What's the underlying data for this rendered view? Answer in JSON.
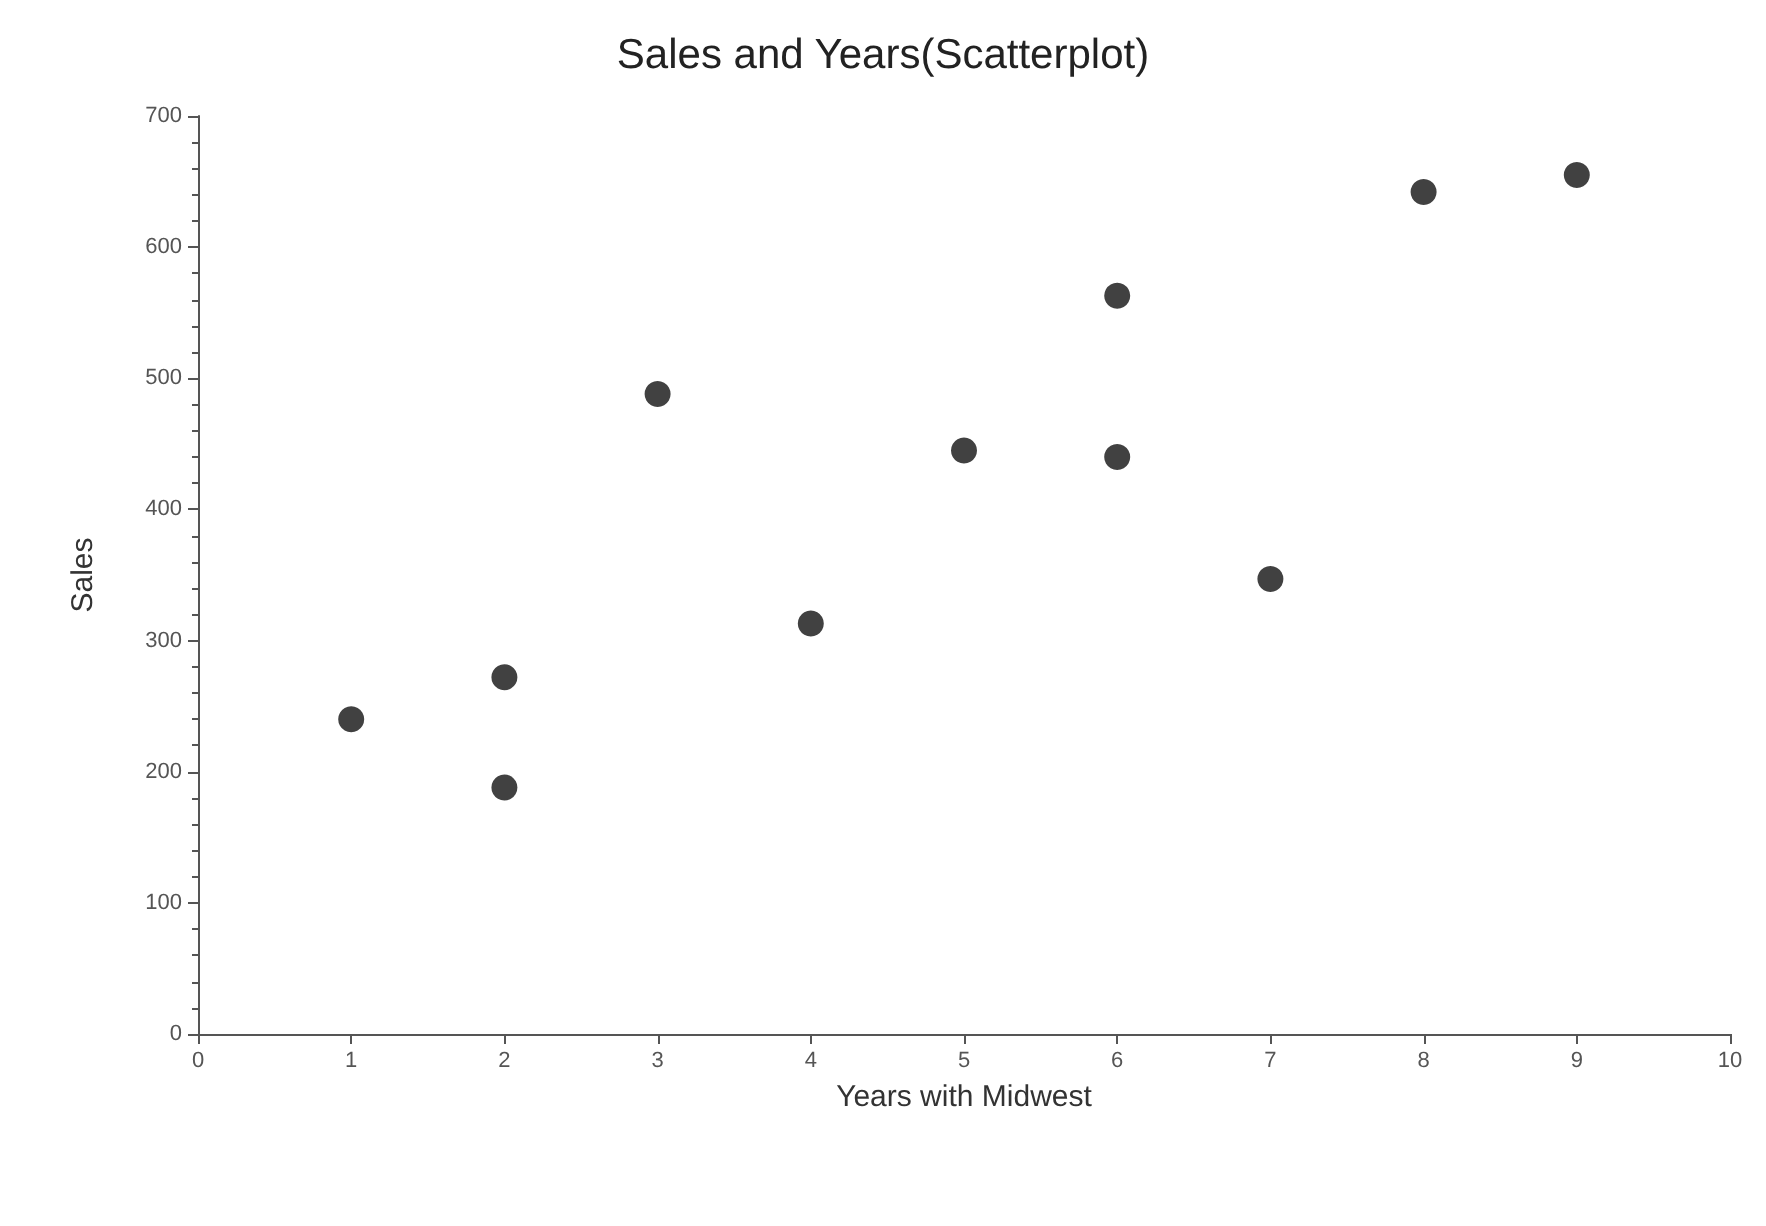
{
  "chart_data": {
    "type": "scatter",
    "title": "Sales and Years(Scatterplot)",
    "xlabel": "Years with Midwest",
    "ylabel": "Sales",
    "x": [
      1,
      2,
      2,
      3,
      4,
      5,
      6,
      6,
      7,
      8,
      9
    ],
    "values": [
      240,
      272,
      188,
      488,
      313,
      445,
      563,
      440,
      347,
      642,
      655
    ],
    "color": "#111111",
    "marker": "circle",
    "grid": false,
    "xlim": [
      0,
      10
    ],
    "xticks": [
      0,
      1,
      2,
      3,
      4,
      5,
      6,
      7,
      8,
      9,
      10
    ],
    "ylim": [
      0,
      700
    ],
    "yticks": [
      0,
      100,
      200,
      300,
      400,
      500,
      600,
      700
    ]
  }
}
